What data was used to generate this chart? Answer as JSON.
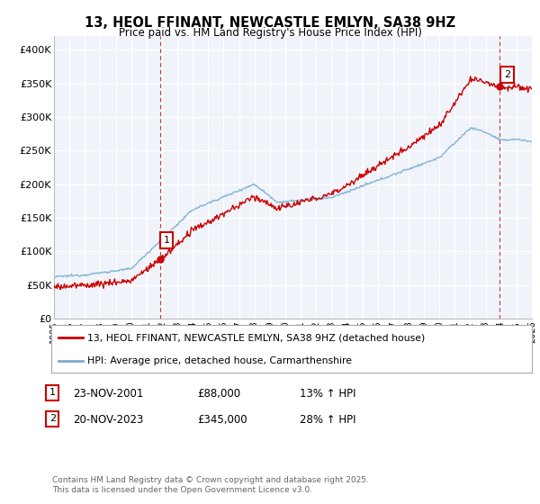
{
  "title": "13, HEOL FFINANT, NEWCASTLE EMLYN, SA38 9HZ",
  "subtitle": "Price paid vs. HM Land Registry's House Price Index (HPI)",
  "legend_entry1": "13, HEOL FFINANT, NEWCASTLE EMLYN, SA38 9HZ (detached house)",
  "legend_entry2": "HPI: Average price, detached house, Carmarthenshire",
  "annotation1_label": "1",
  "annotation1_date": "23-NOV-2001",
  "annotation1_price": "£88,000",
  "annotation1_hpi": "13% ↑ HPI",
  "annotation2_label": "2",
  "annotation2_date": "20-NOV-2023",
  "annotation2_price": "£345,000",
  "annotation2_hpi": "28% ↑ HPI",
  "footer": "Contains HM Land Registry data © Crown copyright and database right 2025.\nThis data is licensed under the Open Government Licence v3.0.",
  "line1_color": "#cc0000",
  "line2_color": "#7aadd4",
  "vline_color": "#cc0000",
  "background_color": "#ffffff",
  "grid_color": "#cccccc",
  "ylim": [
    0,
    420000
  ],
  "yticks": [
    0,
    50000,
    100000,
    150000,
    200000,
    250000,
    300000,
    350000,
    400000
  ],
  "ytick_labels": [
    "£0",
    "£50K",
    "£100K",
    "£150K",
    "£200K",
    "£250K",
    "£300K",
    "£350K",
    "£400K"
  ],
  "sale1_year": 2001.9,
  "sale1_price": 88000,
  "sale2_year": 2023.9,
  "sale2_price": 345000
}
